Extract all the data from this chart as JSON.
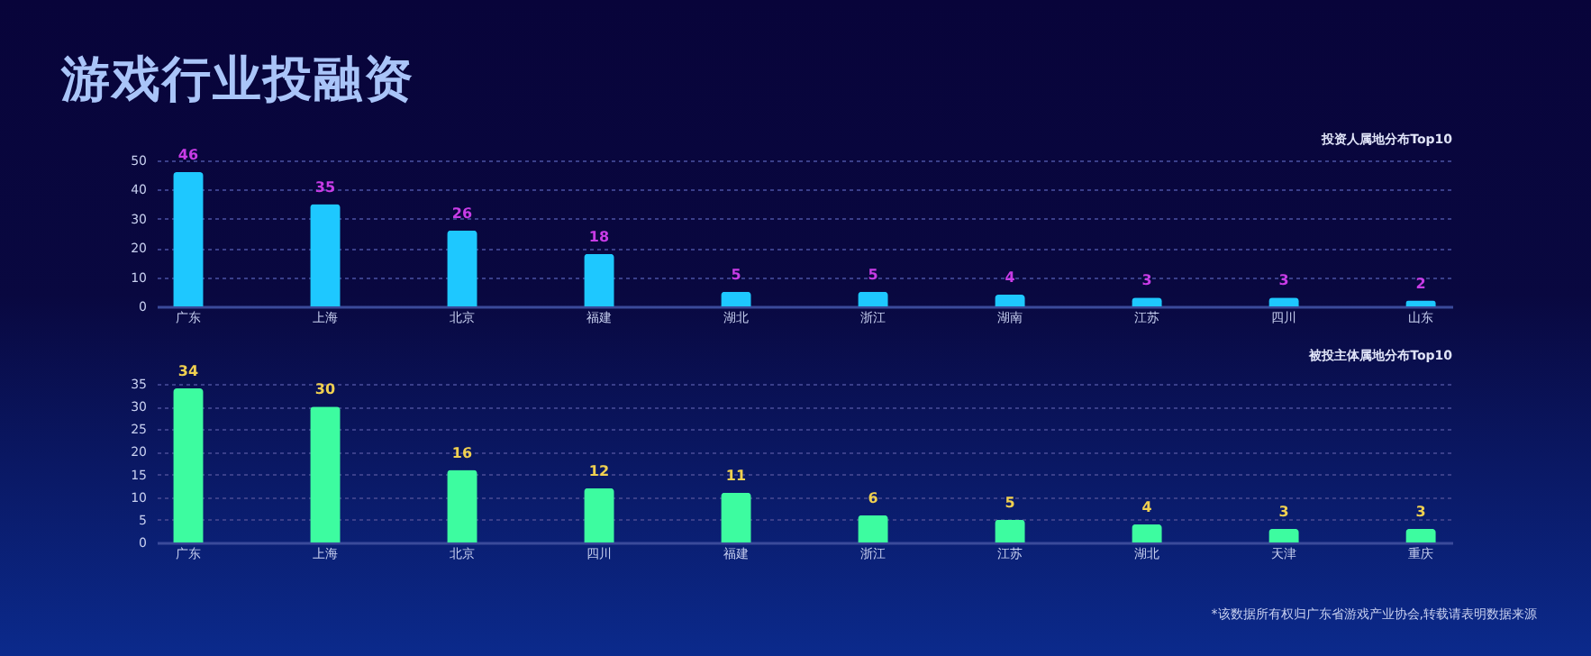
{
  "chart_data": [
    {
      "type": "bar",
      "title": "游戏行业投融资",
      "subtitle": "投资人属地分布Top10",
      "categories": [
        "广东",
        "上海",
        "北京",
        "福建",
        "湖北",
        "浙江",
        "湖南",
        "江苏",
        "四川",
        "山东"
      ],
      "values": [
        46,
        35,
        26,
        18,
        5,
        5,
        4,
        3,
        3,
        2
      ],
      "color": "#1ec8ff",
      "ylim": [
        0,
        50
      ],
      "yticks": [
        0,
        10,
        20,
        30,
        40,
        50
      ],
      "grid": "y",
      "data_labels": true
    },
    {
      "type": "bar",
      "subtitle": "被投主体属地分布Top10",
      "categories": [
        "广东",
        "上海",
        "北京",
        "四川",
        "福建",
        "浙江",
        "江苏",
        "湖北",
        "天津",
        "重庆"
      ],
      "values": [
        34,
        30,
        16,
        12,
        11,
        6,
        5,
        4,
        3,
        3
      ],
      "color": "#3dfca0",
      "ylim": [
        0,
        35
      ],
      "yticks": [
        0,
        5,
        10,
        15,
        20,
        25,
        30,
        35
      ],
      "grid": "y",
      "data_labels": true,
      "annotations": [
        "*该数据所有权归广东省游戏产业协会,转载请表明数据来源"
      ]
    }
  ]
}
